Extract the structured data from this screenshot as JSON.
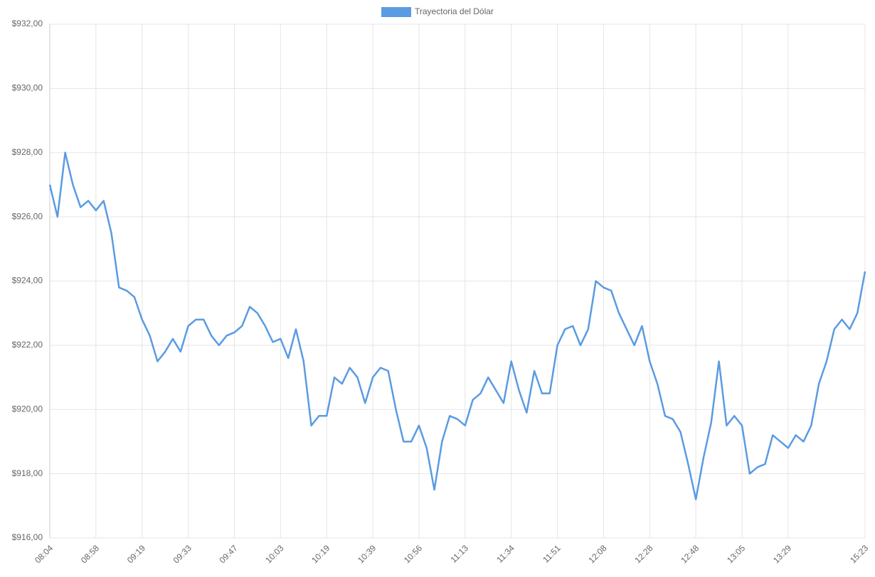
{
  "chart_data": {
    "type": "line",
    "categories": [
      "08:04",
      null,
      null,
      null,
      null,
      null,
      "08:58",
      null,
      null,
      null,
      null,
      null,
      "09:19",
      null,
      null,
      null,
      null,
      null,
      "09:33",
      null,
      null,
      null,
      null,
      null,
      "09:47",
      null,
      null,
      null,
      null,
      null,
      "10:03",
      null,
      null,
      null,
      null,
      null,
      "10:19",
      null,
      null,
      null,
      null,
      null,
      "10:39",
      null,
      null,
      null,
      null,
      null,
      "10:56",
      null,
      null,
      null,
      null,
      null,
      "11:13",
      null,
      null,
      null,
      null,
      null,
      "11:34",
      null,
      null,
      null,
      null,
      null,
      "11:51",
      null,
      null,
      null,
      null,
      null,
      "12:08",
      null,
      null,
      null,
      null,
      null,
      "12:28",
      null,
      null,
      null,
      null,
      null,
      "12:48",
      null,
      null,
      null,
      null,
      null,
      "13:05",
      null,
      null,
      null,
      null,
      null,
      "13:29",
      null,
      null,
      null,
      null,
      null,
      null,
      null,
      null,
      null,
      "15:23"
    ],
    "series": [
      {
        "name": "Trayectoria del Dólar",
        "color": "#5a9be3",
        "values": [
          927.0,
          926.0,
          928.0,
          927.0,
          926.3,
          926.5,
          926.2,
          926.5,
          925.5,
          923.8,
          923.7,
          923.5,
          922.8,
          922.3,
          921.5,
          921.8,
          922.2,
          921.8,
          922.6,
          922.8,
          922.8,
          922.3,
          922.0,
          922.3,
          922.4,
          922.6,
          923.2,
          923.0,
          922.6,
          922.1,
          922.2,
          921.6,
          922.5,
          921.5,
          919.5,
          919.8,
          919.8,
          921.0,
          920.8,
          921.3,
          921.0,
          920.2,
          921.0,
          921.3,
          921.2,
          920.0,
          919.0,
          919.0,
          919.5,
          918.8,
          917.5,
          919.0,
          919.8,
          919.7,
          919.5,
          920.3,
          920.5,
          921.0,
          920.6,
          920.2,
          921.5,
          920.6,
          919.9,
          921.2,
          920.5,
          920.5,
          922.0,
          922.5,
          922.6,
          922.0,
          922.5,
          924.0,
          923.8,
          923.7,
          923.0,
          922.5,
          922.0,
          922.6,
          921.5,
          920.8,
          919.8,
          919.7,
          919.3,
          918.3,
          917.2,
          918.5,
          919.6,
          921.5,
          919.5,
          919.8,
          919.5,
          918.0,
          918.2,
          918.3,
          919.2,
          919.0,
          918.8,
          919.2,
          919.0,
          919.5,
          920.8,
          921.5,
          922.5,
          922.8,
          922.5,
          923.0,
          924.3
        ]
      }
    ],
    "ylim": [
      916,
      932
    ],
    "yticks": [
      {
        "value": 916,
        "label": "$916,00"
      },
      {
        "value": 918,
        "label": "$918,00"
      },
      {
        "value": 920,
        "label": "$920,00"
      },
      {
        "value": 922,
        "label": "$922,00"
      },
      {
        "value": 924,
        "label": "$924,00"
      },
      {
        "value": 926,
        "label": "$926,00"
      },
      {
        "value": 928,
        "label": "$928,00"
      },
      {
        "value": 930,
        "label": "$930,00"
      },
      {
        "value": 932,
        "label": "$932,00"
      }
    ],
    "grid": true,
    "legend": "top"
  }
}
